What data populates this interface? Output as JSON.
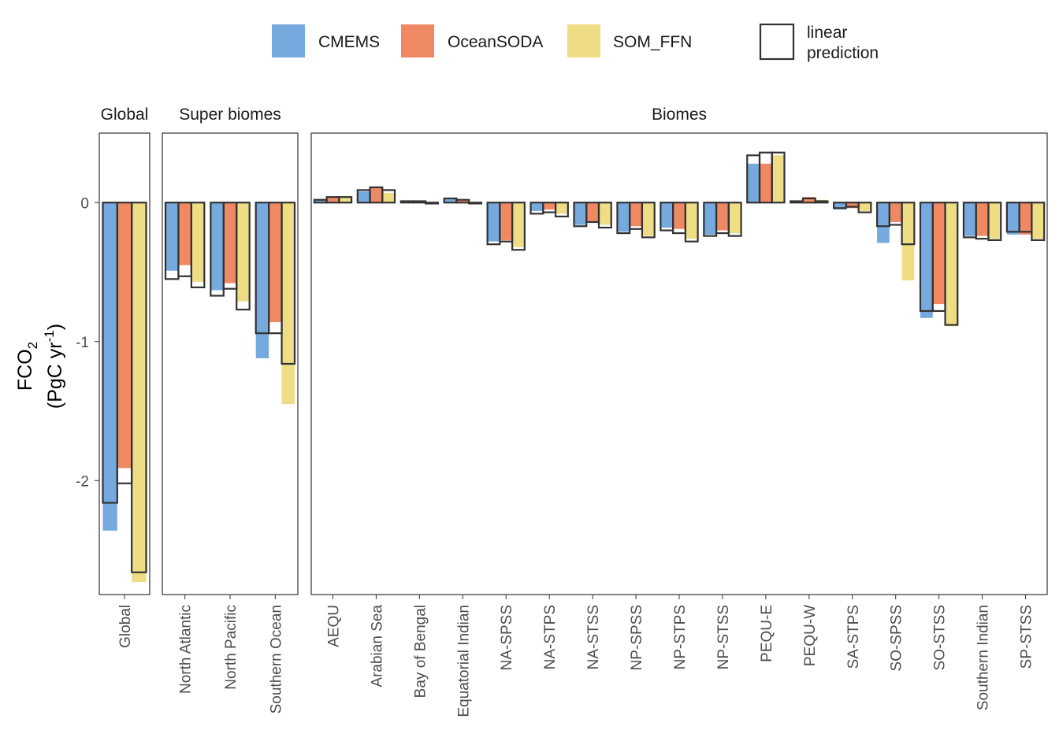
{
  "colors": {
    "CMEMS": "#76a9dd",
    "OceanSODA": "#ef8964",
    "SOM_FFN": "#eedd85",
    "frame": "#333333"
  },
  "legend": {
    "items": [
      "CMEMS",
      "OceanSODA",
      "SOM_FFN"
    ],
    "prediction_line1": "linear",
    "prediction_line2": "prediction"
  },
  "y_axis": {
    "title_main": "FCO",
    "title_sub": "2",
    "title_unit_a": "(PgC yr",
    "title_unit_sup": "-1",
    "title_unit_b": ")",
    "ticks": [
      "0",
      "-1",
      "-2"
    ]
  },
  "chart_data": {
    "type": "bar",
    "ylim": [
      -2.82,
      0.5
    ],
    "series_names": [
      "CMEMS",
      "OceanSODA",
      "SOM_FFN"
    ],
    "panels": [
      {
        "strip": "Global",
        "categories": [
          "Global"
        ],
        "observed": [
          [
            -2.36,
            -1.91,
            -2.73
          ]
        ],
        "prediction": [
          [
            -2.16,
            -2.02,
            -2.66
          ]
        ]
      },
      {
        "strip": "Super biomes",
        "categories": [
          "North Atlantic",
          "North Pacific",
          "Southern Ocean"
        ],
        "observed": [
          [
            -0.49,
            -0.45,
            -0.57
          ],
          [
            -0.63,
            -0.58,
            -0.71
          ],
          [
            -1.12,
            -0.86,
            -1.45
          ]
        ],
        "prediction": [
          [
            -0.55,
            -0.53,
            -0.61
          ],
          [
            -0.67,
            -0.62,
            -0.77
          ],
          [
            -0.94,
            -0.94,
            -1.16
          ]
        ]
      },
      {
        "strip": "Biomes",
        "categories": [
          "AEQU",
          "Arabian Sea",
          "Bay of Bengal",
          "Equatorial Indian",
          "NA-SPSS",
          "NA-STPS",
          "NA-STSS",
          "NP-SPSS",
          "NP-STPS",
          "NP-STSS",
          "PEQU-E",
          "PEQU-W",
          "SA-STPS",
          "SO-SPSS",
          "SO-STSS",
          "Southern Indian",
          "SP-STSS"
        ],
        "observed": [
          [
            0.02,
            0.04,
            0.04
          ],
          [
            0.08,
            0.11,
            0.07
          ],
          [
            0.01,
            0.01,
            0.0
          ],
          [
            0.03,
            0.02,
            0.0
          ],
          [
            -0.28,
            -0.27,
            -0.32
          ],
          [
            -0.06,
            -0.05,
            -0.08
          ],
          [
            -0.16,
            -0.14,
            -0.16
          ],
          [
            -0.21,
            -0.17,
            -0.24
          ],
          [
            -0.18,
            -0.19,
            -0.26
          ],
          [
            -0.23,
            -0.2,
            -0.22
          ],
          [
            0.28,
            0.28,
            0.34
          ],
          [
            0.01,
            0.04,
            0.02
          ],
          [
            -0.05,
            -0.04,
            -0.06
          ],
          [
            -0.29,
            -0.14,
            -0.56
          ],
          [
            -0.83,
            -0.73,
            -0.89
          ],
          [
            -0.24,
            -0.24,
            -0.26
          ],
          [
            -0.23,
            -0.23,
            -0.26
          ]
        ],
        "prediction": [
          [
            0.02,
            0.04,
            0.04
          ],
          [
            0.09,
            0.11,
            0.09
          ],
          [
            0.01,
            0.01,
            0.0
          ],
          [
            0.03,
            0.02,
            0.0
          ],
          [
            -0.3,
            -0.28,
            -0.34
          ],
          [
            -0.08,
            -0.07,
            -0.1
          ],
          [
            -0.17,
            -0.14,
            -0.18
          ],
          [
            -0.22,
            -0.19,
            -0.25
          ],
          [
            -0.2,
            -0.22,
            -0.28
          ],
          [
            -0.24,
            -0.22,
            -0.24
          ],
          [
            0.34,
            0.36,
            0.36
          ],
          [
            0.01,
            0.03,
            0.01
          ],
          [
            -0.04,
            -0.03,
            -0.07
          ],
          [
            -0.17,
            -0.16,
            -0.3
          ],
          [
            -0.78,
            -0.78,
            -0.88
          ],
          [
            -0.25,
            -0.26,
            -0.27
          ],
          [
            -0.21,
            -0.21,
            -0.27
          ]
        ]
      }
    ]
  }
}
